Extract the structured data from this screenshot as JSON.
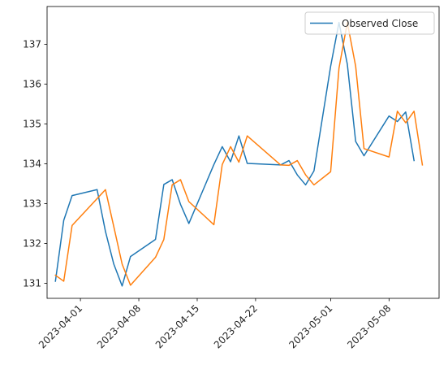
{
  "chart_data": {
    "type": "line",
    "title": "",
    "xlabel": "",
    "ylabel": "",
    "x_axis": {
      "type": "date",
      "range": [
        "2023-03-28",
        "2023-05-14"
      ],
      "ticks": [
        "2023-04-01",
        "2023-04-08",
        "2023-04-15",
        "2023-04-22",
        "2023-05-01",
        "2023-05-08"
      ],
      "tick_label_rotation": 45
    },
    "y_axis": {
      "range": [
        130.62,
        137.95
      ],
      "ticks": [
        131,
        132,
        133,
        134,
        135,
        136,
        137
      ]
    },
    "grid": false,
    "legend": {
      "placement": "top-right",
      "entries": [
        "Observed Close"
      ]
    },
    "series": [
      {
        "name": "Observed Close",
        "color": "#1f77b4",
        "points": [
          [
            "2023-03-29",
            131.05
          ],
          [
            "2023-03-30",
            132.58
          ],
          [
            "2023-03-31",
            133.2
          ],
          [
            "2023-04-03",
            133.35
          ],
          [
            "2023-04-04",
            132.3
          ],
          [
            "2023-04-05",
            131.48
          ],
          [
            "2023-04-06",
            130.93
          ],
          [
            "2023-04-07",
            131.67
          ],
          [
            "2023-04-10",
            132.1
          ],
          [
            "2023-04-11",
            133.48
          ],
          [
            "2023-04-12",
            133.6
          ],
          [
            "2023-04-13",
            132.98
          ],
          [
            "2023-04-14",
            132.5
          ],
          [
            "2023-04-17",
            133.98
          ],
          [
            "2023-04-18",
            134.43
          ],
          [
            "2023-04-19",
            134.05
          ],
          [
            "2023-04-20",
            134.7
          ],
          [
            "2023-04-21",
            134.01
          ],
          [
            "2023-04-25",
            133.97
          ],
          [
            "2023-04-26",
            134.08
          ],
          [
            "2023-04-27",
            133.72
          ],
          [
            "2023-04-28",
            133.47
          ],
          [
            "2023-04-29",
            133.82
          ],
          [
            "2023-05-01",
            136.45
          ],
          [
            "2023-05-02",
            137.55
          ],
          [
            "2023-05-03",
            136.5
          ],
          [
            "2023-05-04",
            134.56
          ],
          [
            "2023-05-05",
            134.2
          ],
          [
            "2023-05-08",
            135.2
          ],
          [
            "2023-05-09",
            135.06
          ],
          [
            "2023-05-10",
            135.3
          ],
          [
            "2023-05-11",
            134.08
          ]
        ]
      },
      {
        "color": "#ff7f0e",
        "points": [
          [
            "2023-03-29",
            131.2
          ],
          [
            "2023-03-30",
            131.05
          ],
          [
            "2023-03-31",
            132.45
          ],
          [
            "2023-04-04",
            133.35
          ],
          [
            "2023-04-05",
            132.42
          ],
          [
            "2023-04-06",
            131.48
          ],
          [
            "2023-04-07",
            130.95
          ],
          [
            "2023-04-10",
            131.65
          ],
          [
            "2023-04-11",
            132.1
          ],
          [
            "2023-04-12",
            133.47
          ],
          [
            "2023-04-13",
            133.6
          ],
          [
            "2023-04-14",
            133.05
          ],
          [
            "2023-04-17",
            132.47
          ],
          [
            "2023-04-18",
            133.98
          ],
          [
            "2023-04-19",
            134.43
          ],
          [
            "2023-04-20",
            134.04
          ],
          [
            "2023-04-21",
            134.7
          ],
          [
            "2023-04-25",
            133.97
          ],
          [
            "2023-04-26",
            133.96
          ],
          [
            "2023-04-27",
            134.08
          ],
          [
            "2023-04-28",
            133.72
          ],
          [
            "2023-04-29",
            133.47
          ],
          [
            "2023-05-01",
            133.8
          ],
          [
            "2023-05-02",
            136.4
          ],
          [
            "2023-05-03",
            137.55
          ],
          [
            "2023-05-04",
            136.45
          ],
          [
            "2023-05-05",
            134.38
          ],
          [
            "2023-05-08",
            134.17
          ],
          [
            "2023-05-09",
            135.32
          ],
          [
            "2023-05-10",
            135.03
          ],
          [
            "2023-05-11",
            135.32
          ],
          [
            "2023-05-12",
            133.97
          ]
        ]
      }
    ]
  }
}
